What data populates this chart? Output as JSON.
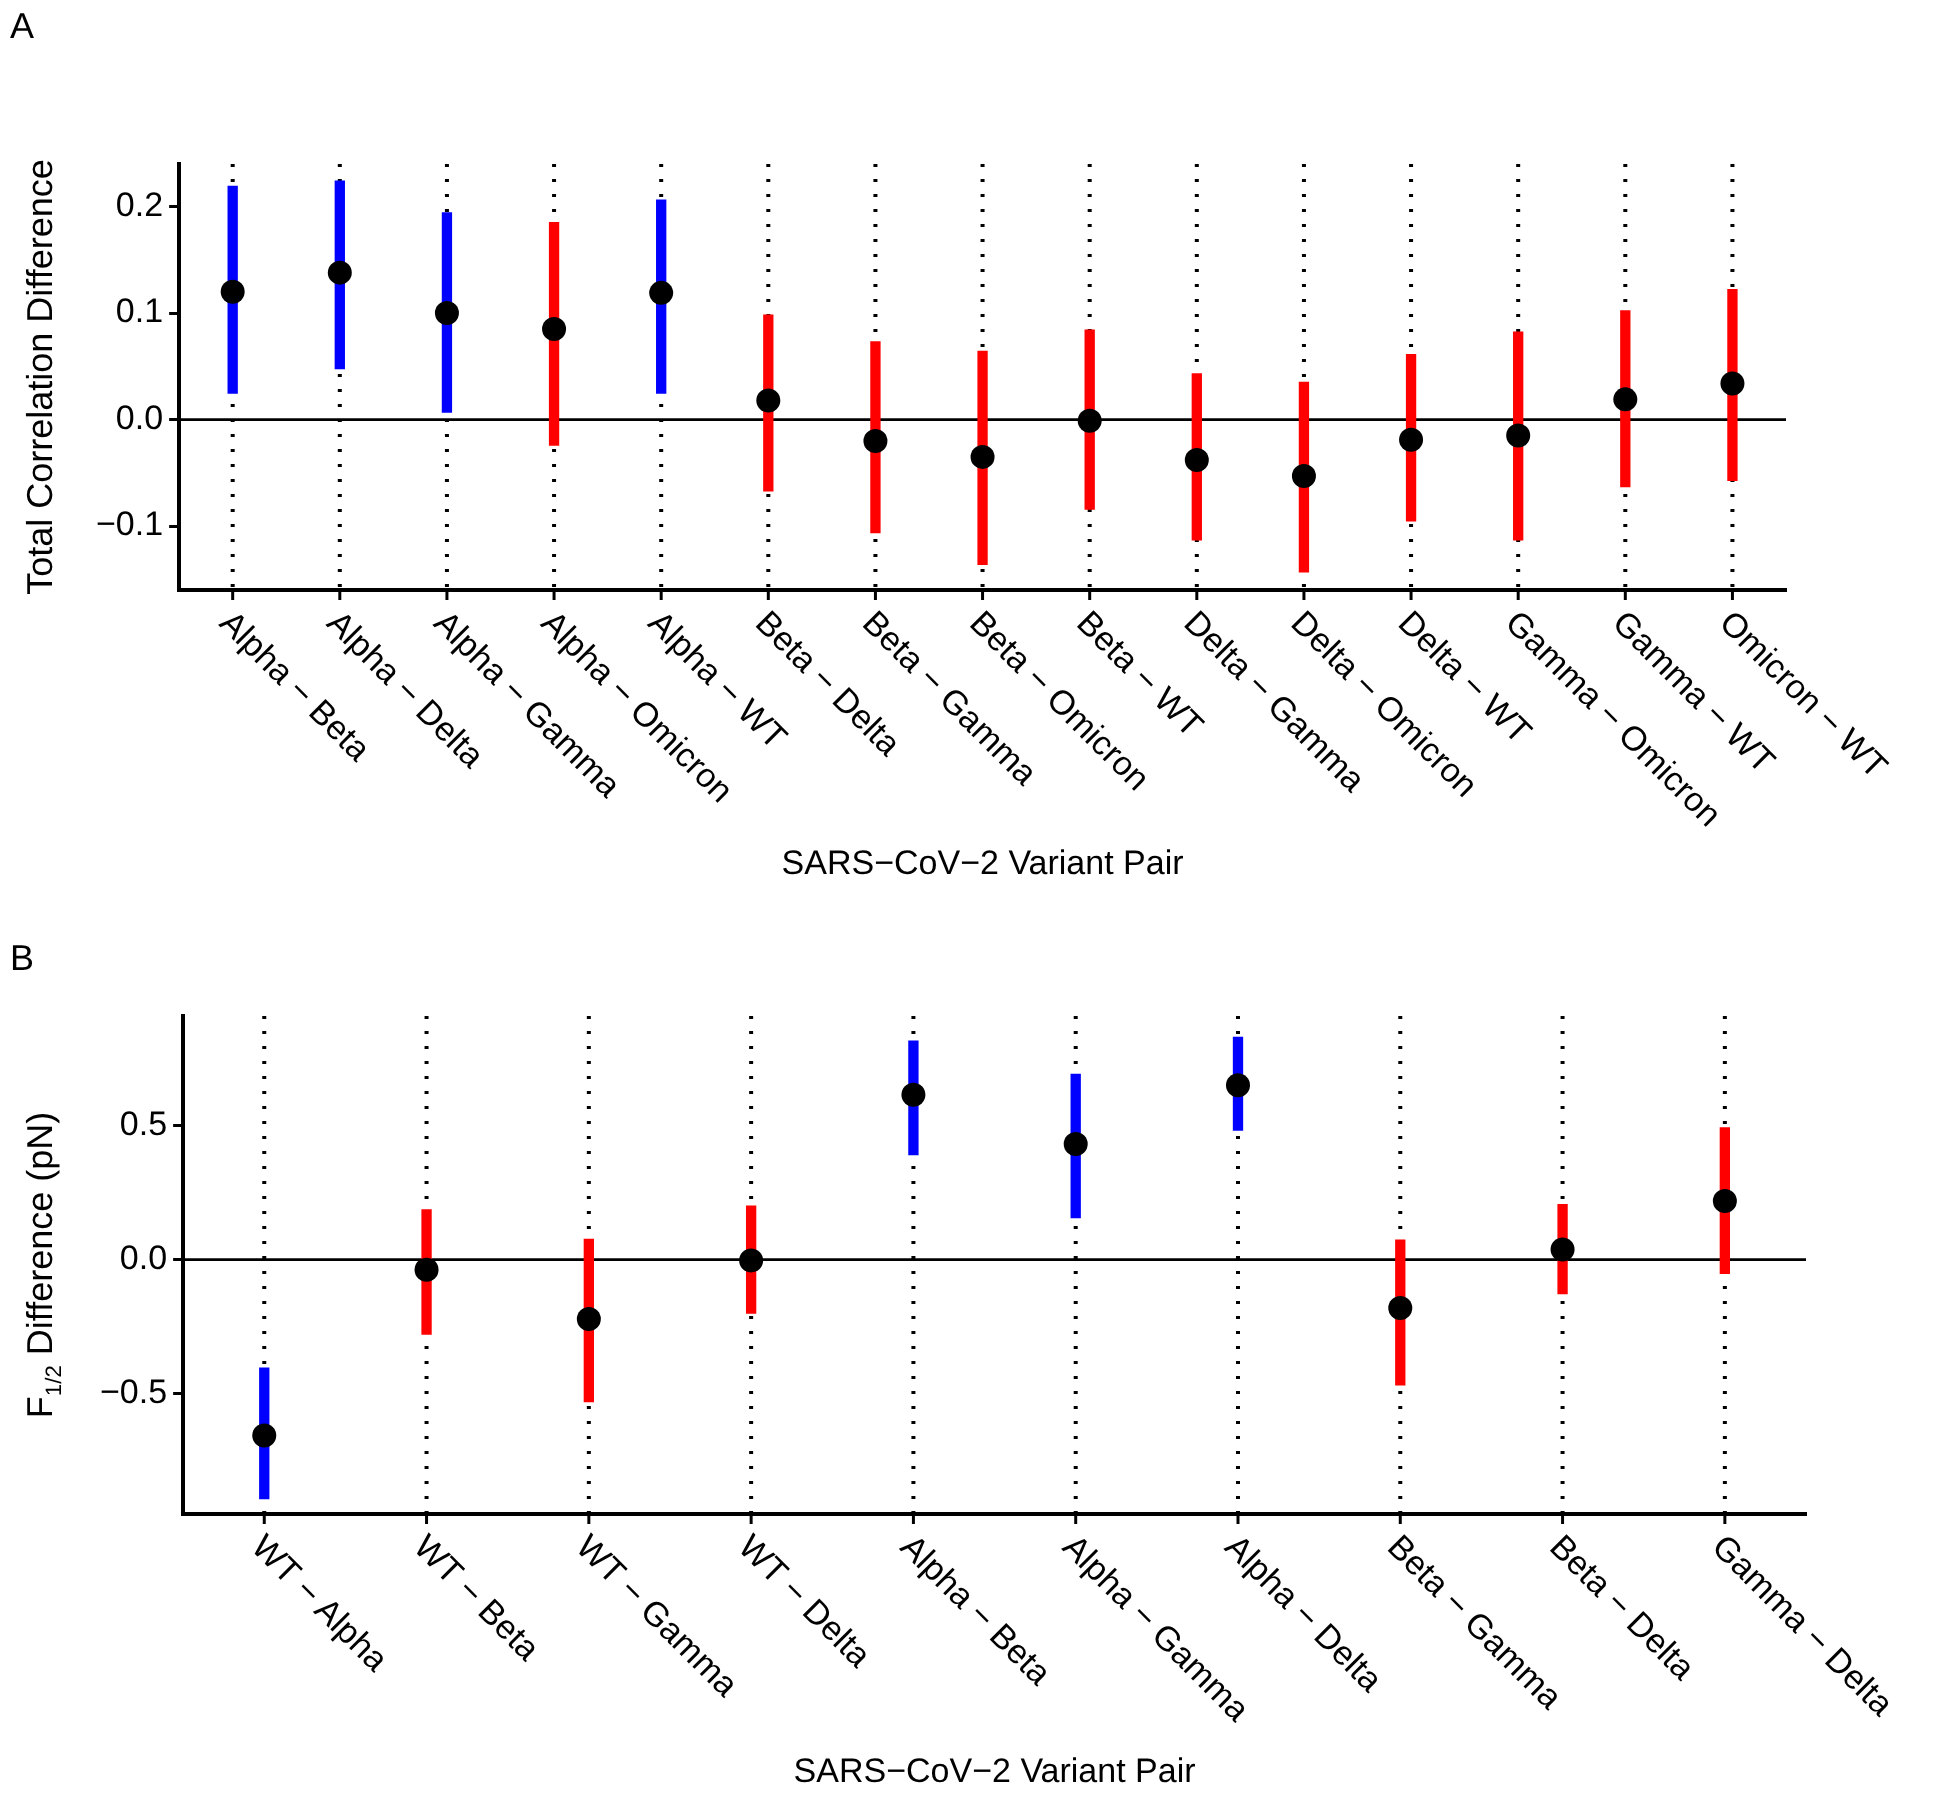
{
  "chart_data": [
    {
      "type": "bar",
      "title": "A",
      "xlabel": "SARS−CoV−2 Variant Pair",
      "ylabel": "Total Correlation Difference",
      "categories": [
        "Alpha − Beta",
        "Alpha − Delta",
        "Alpha − Gamma",
        "Alpha − Omicron",
        "Alpha − WT",
        "Beta − Delta",
        "Beta − Gamma",
        "Beta − Omicron",
        "Beta − WT",
        "Delta − Gamma",
        "Delta − Omicron",
        "Delta − WT",
        "Gamma − Omicron",
        "Gamma − WT",
        "Omicron − WT"
      ],
      "series": [
        {
          "colors": [
            "#0000ff",
            "#0000ff",
            "#0000ff",
            "#ff0000",
            "#0000ff",
            "#ff0000",
            "#ff0000",
            "#ff0000",
            "#ff0000",
            "#ff0000",
            "#ff0000",
            "#ff0000",
            "#ff0000",
            "#ff0000",
            "#ff0000"
          ],
          "base": [
            0.025,
            0.048,
            0.007,
            -0.024,
            0.025,
            -0.067,
            -0.106,
            -0.136,
            -0.084,
            -0.113,
            -0.143,
            -0.095,
            -0.113,
            -0.063,
            -0.057
          ],
          "values": [
            0.194,
            0.176,
            0.187,
            0.209,
            0.181,
            0.165,
            0.179,
            0.2,
            0.168,
            0.156,
            0.178,
            0.156,
            0.195,
            0.165,
            0.179
          ]
        },
        {
          "type": "scatter",
          "color": "#000000",
          "values": [
            0.12,
            0.138,
            0.1,
            0.085,
            0.119,
            0.018,
            -0.02,
            -0.035,
            -0.001,
            -0.038,
            -0.053,
            -0.019,
            -0.015,
            0.019,
            0.034
          ]
        }
      ],
      "ylim": [
        -0.16,
        0.24
      ],
      "yticks": [
        {
          "value": -0.1,
          "label": "−0.1"
        },
        {
          "value": 0,
          "label": "0.0"
        },
        0.1,
        0.2
      ],
      "grid": "x",
      "marker": "circle",
      "ref_lines": [
        {
          "axis": "y",
          "value": 0
        }
      ]
    },
    {
      "type": "bar",
      "title": "B",
      "xlabel": "SARS−CoV−2 Variant Pair",
      "ylabel": "F$_{1/2}$ Difference (pN)",
      "categories": [
        "WT − Alpha",
        "WT − Beta",
        "WT − Gamma",
        "WT − Delta",
        "Alpha − Beta",
        "Alpha − Gamma",
        "Alpha − Delta",
        "Beta − Gamma",
        "Beta − Delta",
        "Gamma − Delta"
      ],
      "series": [
        {
          "colors": [
            "#0000ff",
            "#ff0000",
            "#ff0000",
            "#ff0000",
            "#0000ff",
            "#0000ff",
            "#0000ff",
            "#ff0000",
            "#ff0000",
            "#ff0000"
          ],
          "base": [
            -0.892,
            -0.278,
            -0.53,
            -0.2,
            0.392,
            0.157,
            0.484,
            -0.468,
            -0.127,
            -0.051
          ],
          "values": [
            0.487,
            0.464,
            0.606,
            0.4,
            0.424,
            0.535,
            0.346,
            0.541,
            0.332,
            0.543
          ]
        },
        {
          "type": "scatter",
          "color": "#000000",
          "values": [
            -0.657,
            -0.038,
            -0.222,
            -0.003,
            0.616,
            0.432,
            0.651,
            -0.181,
            0.038,
            0.219
          ]
        }
      ],
      "ylim": [
        -0.95,
        0.91
      ],
      "yticks": [
        {
          "value": -0.5,
          "label": "−0.5"
        },
        {
          "value": 0,
          "label": "0.0"
        },
        0.5
      ],
      "grid": "x",
      "marker": "circle",
      "ref_lines": [
        {
          "axis": "y",
          "value": 0
        }
      ]
    }
  ]
}
